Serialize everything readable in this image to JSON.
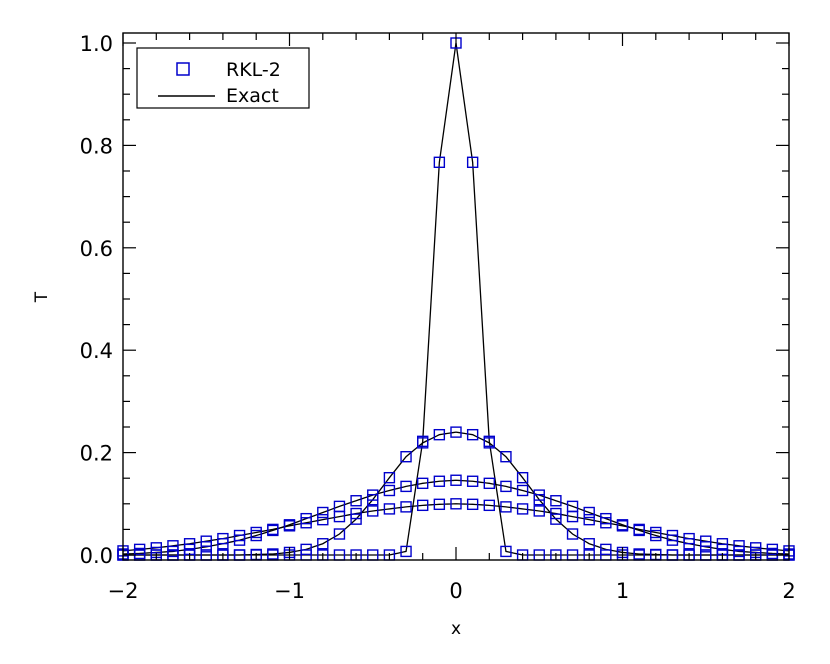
{
  "chart_data": {
    "type": "line",
    "xlabel": "x",
    "ylabel": "T",
    "xlim": [
      -2,
      2
    ],
    "ylim": [
      0,
      1
    ],
    "xticks": [
      "−2",
      "−1",
      "0",
      "1",
      "2"
    ],
    "xtick_values": [
      -2,
      -1,
      0,
      1,
      2
    ],
    "yticks": [
      "0.0",
      "0.2",
      "0.4",
      "0.6",
      "0.8",
      "1.0"
    ],
    "ytick_values": [
      0,
      0.2,
      0.4,
      0.6,
      0.8,
      1.0
    ],
    "grid": false,
    "legend": {
      "placement": "top-left",
      "entries": [
        {
          "label": "RKL-2",
          "marker": "square",
          "color": "#0000cc"
        },
        {
          "label": "Exact",
          "marker": "line",
          "color": "#000000"
        }
      ]
    },
    "x": [
      -2.0,
      -1.9,
      -1.8,
      -1.7,
      -1.6,
      -1.5,
      -1.4,
      -1.3,
      -1.2,
      -1.1,
      -1.0,
      -0.9,
      -0.8,
      -0.7,
      -0.6,
      -0.5,
      -0.4,
      -0.3,
      -0.2,
      -0.1,
      0.0,
      0.1,
      0.2,
      0.3,
      0.4,
      0.5,
      0.6,
      0.7,
      0.8,
      0.9,
      1.0,
      1.1,
      1.2,
      1.3,
      1.4,
      1.5,
      1.6,
      1.7,
      1.8,
      1.9,
      2.0
    ],
    "series": [
      {
        "name": "RKL-2",
        "color": "#0000cc",
        "values": [
          0.0,
          0.0,
          0.0,
          0.0,
          0.0,
          0.0,
          0.0,
          0.0,
          0.0,
          0.0,
          0.0,
          0.0,
          0.0,
          0.0,
          0.0,
          0.0,
          0.0,
          0.007,
          0.222,
          0.767,
          1.0,
          0.767,
          0.222,
          0.007,
          0.0,
          0.0,
          0.0,
          0.0,
          0.0,
          0.0,
          0.0,
          0.0,
          0.0,
          0.0,
          0.0,
          0.0,
          0.0,
          0.0,
          0.0,
          0.0,
          0.0
        ]
      },
      {
        "name": "RKL-2",
        "color": "#0000cc",
        "values": [
          0.0,
          0.0,
          0.0,
          0.0,
          0.0,
          0.0,
          0.0,
          0.0,
          0.001,
          0.002,
          0.005,
          0.011,
          0.022,
          0.041,
          0.07,
          0.108,
          0.151,
          0.192,
          0.219,
          0.235,
          0.24,
          0.235,
          0.219,
          0.192,
          0.151,
          0.108,
          0.07,
          0.041,
          0.022,
          0.011,
          0.005,
          0.002,
          0.001,
          0.0,
          0.0,
          0.0,
          0.0,
          0.0,
          0.0,
          0.0,
          0.0
        ]
      },
      {
        "name": "RKL-2",
        "color": "#0000cc",
        "values": [
          0.002,
          0.003,
          0.005,
          0.007,
          0.011,
          0.016,
          0.022,
          0.029,
          0.038,
          0.048,
          0.059,
          0.071,
          0.083,
          0.095,
          0.106,
          0.117,
          0.126,
          0.134,
          0.14,
          0.144,
          0.146,
          0.144,
          0.14,
          0.134,
          0.126,
          0.117,
          0.106,
          0.095,
          0.083,
          0.071,
          0.059,
          0.048,
          0.038,
          0.029,
          0.022,
          0.016,
          0.011,
          0.007,
          0.005,
          0.003,
          0.002
        ]
      },
      {
        "name": "RKL-2",
        "color": "#0000cc",
        "values": [
          0.008,
          0.011,
          0.014,
          0.018,
          0.022,
          0.027,
          0.032,
          0.038,
          0.044,
          0.05,
          0.057,
          0.063,
          0.069,
          0.075,
          0.081,
          0.086,
          0.09,
          0.094,
          0.097,
          0.099,
          0.1,
          0.099,
          0.097,
          0.094,
          0.09,
          0.086,
          0.081,
          0.075,
          0.069,
          0.063,
          0.057,
          0.05,
          0.044,
          0.038,
          0.032,
          0.027,
          0.022,
          0.018,
          0.014,
          0.011,
          0.008
        ]
      }
    ]
  }
}
